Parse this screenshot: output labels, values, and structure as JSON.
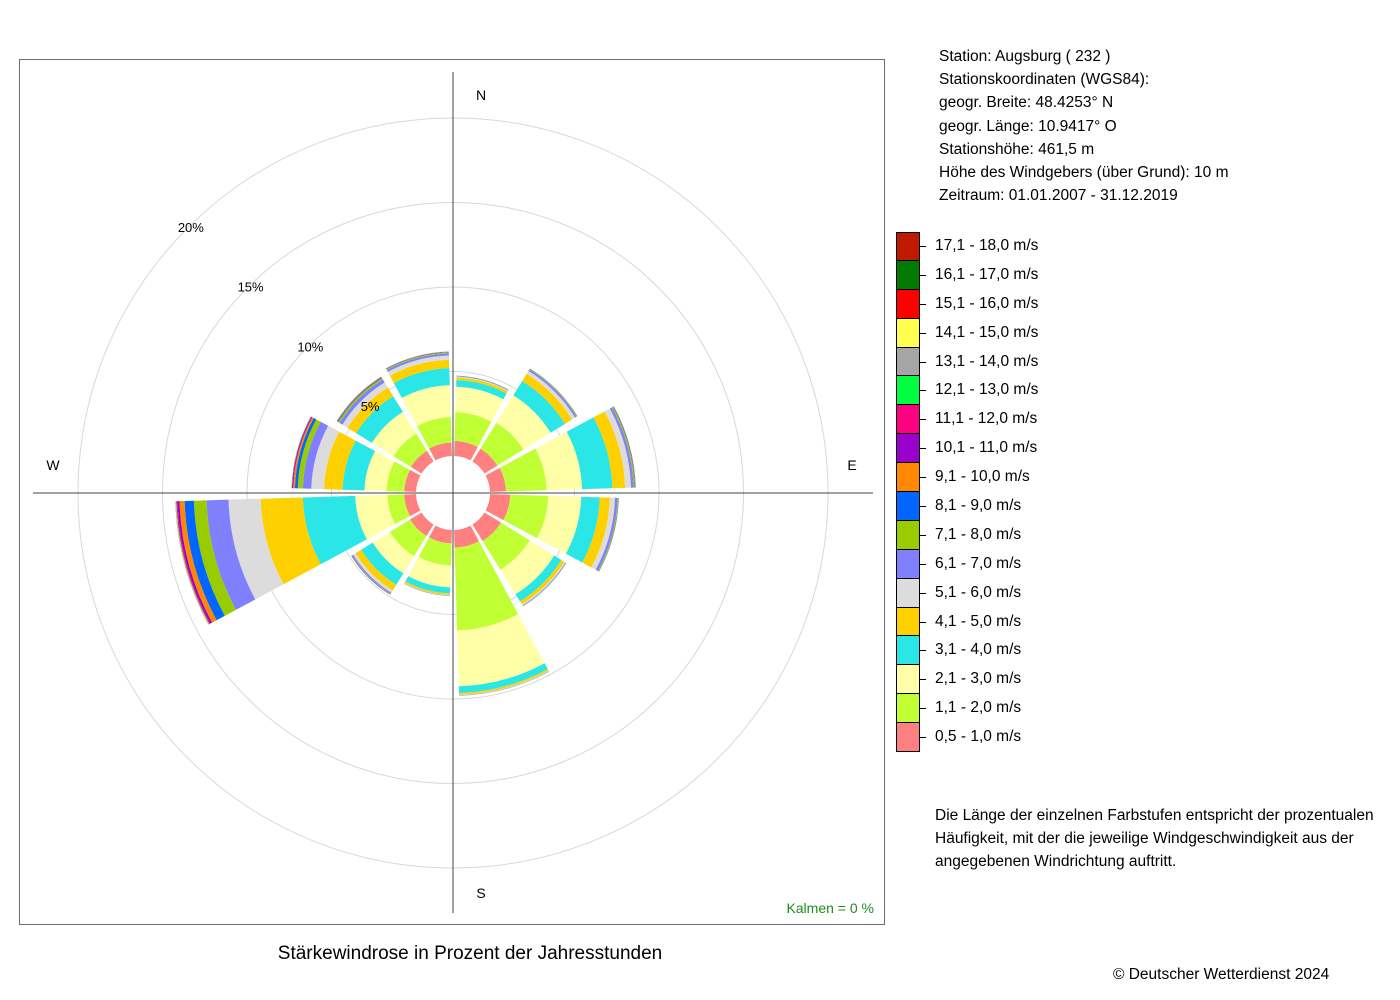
{
  "chart_data": {
    "type": "polar_stacked_bar",
    "title": "Stärkewindrose in Prozent der Jahresstunden",
    "directions": [
      "N",
      "NNE",
      "ENE",
      "E",
      "ESE",
      "SSE",
      "S",
      "SSW",
      "WSW",
      "W",
      "WNW",
      "NNW"
    ],
    "compass_labels": {
      "N": "N",
      "E": "E",
      "S": "S",
      "W": "W"
    },
    "radial_ticks": [
      5,
      10,
      15,
      20
    ],
    "radial_tick_labels": [
      "5%",
      "10%",
      "15%",
      "20%"
    ],
    "radial_unit": "%",
    "legend_title": "",
    "series": [
      {
        "name": "0,5 - 1,0 m/s",
        "color": "#FF8080",
        "values": [
          0.9,
          0.9,
          0.95,
          1.2,
          1.15,
          1.05,
          0.8,
          0.8,
          0.7,
          0.7,
          0.75,
          0.8
        ]
      },
      {
        "name": "1,1 - 2,0 m/s",
        "color": "#BFFF33",
        "values": [
          1.7,
          1.8,
          2.4,
          2.25,
          2.0,
          4.9,
          1.3,
          1.4,
          1.0,
          1.05,
          1.2,
          1.5
        ]
      },
      {
        "name": "2,1 - 3,0 m/s",
        "color": "#FFFFA8",
        "values": [
          1.5,
          1.9,
          2.1,
          1.95,
          1.7,
          3.3,
          1.3,
          1.2,
          1.9,
          1.3,
          1.5,
          1.9
        ]
      },
      {
        "name": "3,1 - 4,0 m/s",
        "color": "#2AE6E6",
        "values": [
          0.4,
          1.0,
          1.8,
          1.1,
          0.5,
          0.4,
          0.35,
          0.8,
          3.1,
          1.3,
          1.1,
          1.0
        ]
      },
      {
        "name": "4,1 - 5,0 m/s",
        "color": "#FFD000",
        "values": [
          0.15,
          0.5,
          0.75,
          0.6,
          0.2,
          0.1,
          0.1,
          0.4,
          2.5,
          1.1,
          0.6,
          0.5
        ]
      },
      {
        "name": "5,1 - 6,0 m/s",
        "color": "#DCDCDC",
        "values": [
          0.05,
          0.2,
          0.35,
          0.3,
          0.08,
          0.04,
          0.03,
          0.15,
          1.9,
          0.75,
          0.35,
          0.25
        ]
      },
      {
        "name": "6,1 - 7,0 m/s",
        "color": "#8080FF",
        "values": [
          0.03,
          0.1,
          0.15,
          0.15,
          0.03,
          0.02,
          0.02,
          0.07,
          1.3,
          0.5,
          0.2,
          0.12
        ]
      },
      {
        "name": "7,1 - 8,0 m/s",
        "color": "#99CC00",
        "values": [
          0.02,
          0.04,
          0.07,
          0.05,
          0.02,
          0.01,
          0.01,
          0.03,
          0.75,
          0.3,
          0.1,
          0.06
        ]
      },
      {
        "name": "8,1 - 9,0 m/s",
        "color": "#0066FF",
        "values": [
          0.01,
          0.02,
          0.03,
          0.02,
          0.01,
          0.0,
          0.0,
          0.02,
          0.55,
          0.17,
          0.05,
          0.03
        ]
      },
      {
        "name": "9,1 - 10,0 m/s",
        "color": "#FF8800",
        "values": [
          0.0,
          0.01,
          0.02,
          0.01,
          0.0,
          0.0,
          0.0,
          0.01,
          0.3,
          0.1,
          0.03,
          0.02
        ]
      },
      {
        "name": "10,1 - 11,0 m/s",
        "color": "#9900CC",
        "values": [
          0.0,
          0.0,
          0.01,
          0.0,
          0.0,
          0.0,
          0.0,
          0.01,
          0.12,
          0.05,
          0.01,
          0.01
        ]
      },
      {
        "name": "11,1 - 12,0 m/s",
        "color": "#FF0080",
        "values": [
          0.0,
          0.0,
          0.0,
          0.0,
          0.0,
          0.0,
          0.0,
          0.0,
          0.06,
          0.03,
          0.01,
          0.0
        ]
      },
      {
        "name": "12,1 - 13,0 m/s",
        "color": "#00FF40",
        "values": [
          0.0,
          0.0,
          0.0,
          0.0,
          0.0,
          0.0,
          0.0,
          0.0,
          0.03,
          0.02,
          0.0,
          0.0
        ]
      },
      {
        "name": "13,1 - 14,0 m/s",
        "color": "#A6A6A6",
        "values": [
          0.0,
          0.0,
          0.0,
          0.0,
          0.0,
          0.0,
          0.0,
          0.0,
          0.02,
          0.01,
          0.0,
          0.0
        ]
      },
      {
        "name": "14,1 - 15,0 m/s",
        "color": "#FFFF4D",
        "values": [
          0.0,
          0.0,
          0.0,
          0.0,
          0.0,
          0.0,
          0.0,
          0.0,
          0.01,
          0.0,
          0.0,
          0.0
        ]
      },
      {
        "name": "15,1 - 16,0 m/s",
        "color": "#FF0000",
        "values": [
          0.0,
          0.0,
          0.0,
          0.0,
          0.0,
          0.0,
          0.0,
          0.0,
          0.01,
          0.0,
          0.0,
          0.0
        ]
      },
      {
        "name": "16,1 - 17,0 m/s",
        "color": "#007A00",
        "values": [
          0.0,
          0.0,
          0.0,
          0.0,
          0.0,
          0.0,
          0.0,
          0.0,
          0.0,
          0.0,
          0.0,
          0.0
        ]
      },
      {
        "name": "17,1 - 18,0 m/s",
        "color": "#BF1A00",
        "values": [
          0.0,
          0.0,
          0.0,
          0.0,
          0.0,
          0.0,
          0.0,
          0.0,
          0.0,
          0.0,
          0.0,
          0.0
        ]
      }
    ],
    "calm_label": "Kalmen  =  0 %",
    "calm_color": "#1E8C1E",
    "grid": true
  },
  "station": {
    "line1": "Station:  Augsburg  ( 232 )",
    "line2": "Stationskoordinaten (WGS84):",
    "line3": "geogr. Breite: 48.4253° N",
    "line4": "geogr. Länge: 10.9417° O",
    "line5": "Stationshöhe: 461,5 m",
    "line6": "Höhe des Windgebers (über Grund): 10 m",
    "line7": "Zeitraum: 01.01.2007 - 31.12.2019"
  },
  "note": {
    "line1": "Die Länge der einzelnen Farbstufen entspricht der prozentualen",
    "line2": "Häufigkeit, mit der die jeweilige Windgeschwindigkeit aus der",
    "line3": "angegebenen Windrichtung auftritt."
  },
  "copyright": "© Deutscher Wetterdienst  2024"
}
